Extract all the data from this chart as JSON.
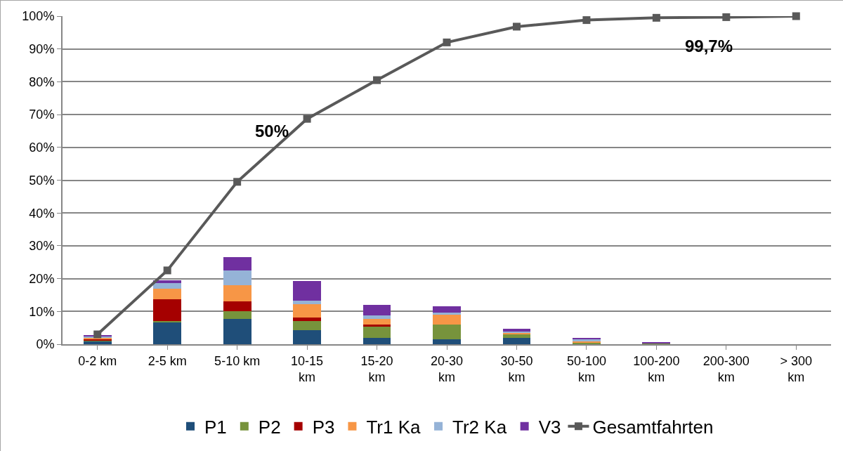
{
  "chart_data": {
    "type": "bar",
    "stacked": true,
    "categories": [
      "0-2 km",
      "2-5 km",
      "5-10 km",
      "10-15 km",
      "15-20 km",
      "20-30 km",
      "30-50 km",
      "50-100 km",
      "100-200 km",
      "200-300 km",
      "> 300 km"
    ],
    "series": [
      {
        "name": "P1",
        "color": "#1f4e79",
        "values": [
          0.9,
          6.7,
          7.8,
          4.2,
          2.0,
          1.4,
          2.0,
          0,
          0,
          0,
          0
        ]
      },
      {
        "name": "P2",
        "color": "#77933c",
        "values": [
          0.3,
          0.4,
          2.3,
          2.8,
          3.4,
          4.7,
          1.1,
          0.4,
          0.4,
          0,
          0
        ]
      },
      {
        "name": "P3",
        "color": "#a50000",
        "values": [
          0.2,
          6.6,
          3.0,
          1.2,
          0.7,
          0,
          0,
          0,
          0,
          0,
          0
        ]
      },
      {
        "name": "Tr1 Ka",
        "color": "#f79646",
        "values": [
          0.7,
          3.3,
          4.8,
          4.0,
          1.7,
          3.0,
          0.4,
          0.6,
          0,
          0,
          0
        ]
      },
      {
        "name": "Tr2 Ka",
        "color": "#95b3d7",
        "values": [
          0.4,
          1.6,
          4.6,
          1.1,
          1.0,
          0.5,
          0.4,
          0.4,
          0,
          0,
          0
        ]
      },
      {
        "name": "V3",
        "color": "#7030a0",
        "values": [
          0.3,
          0.8,
          4.0,
          6.0,
          3.1,
          1.9,
          0.9,
          0.6,
          0.2,
          0,
          0
        ]
      },
      {
        "name": "Gesamtfahrten",
        "type": "line",
        "color": "#595959",
        "marker": "square",
        "line_style": "solid",
        "values": [
          3,
          22.5,
          49.5,
          68.7,
          80.5,
          92,
          96.8,
          98.8,
          99.5,
          99.7,
          100
        ]
      }
    ],
    "ylim": [
      0,
      100
    ],
    "yticks": [
      {
        "value": 0,
        "label": "0%"
      },
      {
        "value": 10,
        "label": "10%"
      },
      {
        "value": 20,
        "label": "20%"
      },
      {
        "value": 30,
        "label": "30%"
      },
      {
        "value": 40,
        "label": "40%"
      },
      {
        "value": 50,
        "label": "50%"
      },
      {
        "value": 60,
        "label": "60%"
      },
      {
        "value": 70,
        "label": "70%"
      },
      {
        "value": 80,
        "label": "80%"
      },
      {
        "value": 90,
        "label": "90%"
      },
      {
        "value": 100,
        "label": "100%"
      }
    ],
    "grid": "y",
    "legend": "bottom",
    "annotations": [
      "50%",
      "99,7%"
    ]
  }
}
